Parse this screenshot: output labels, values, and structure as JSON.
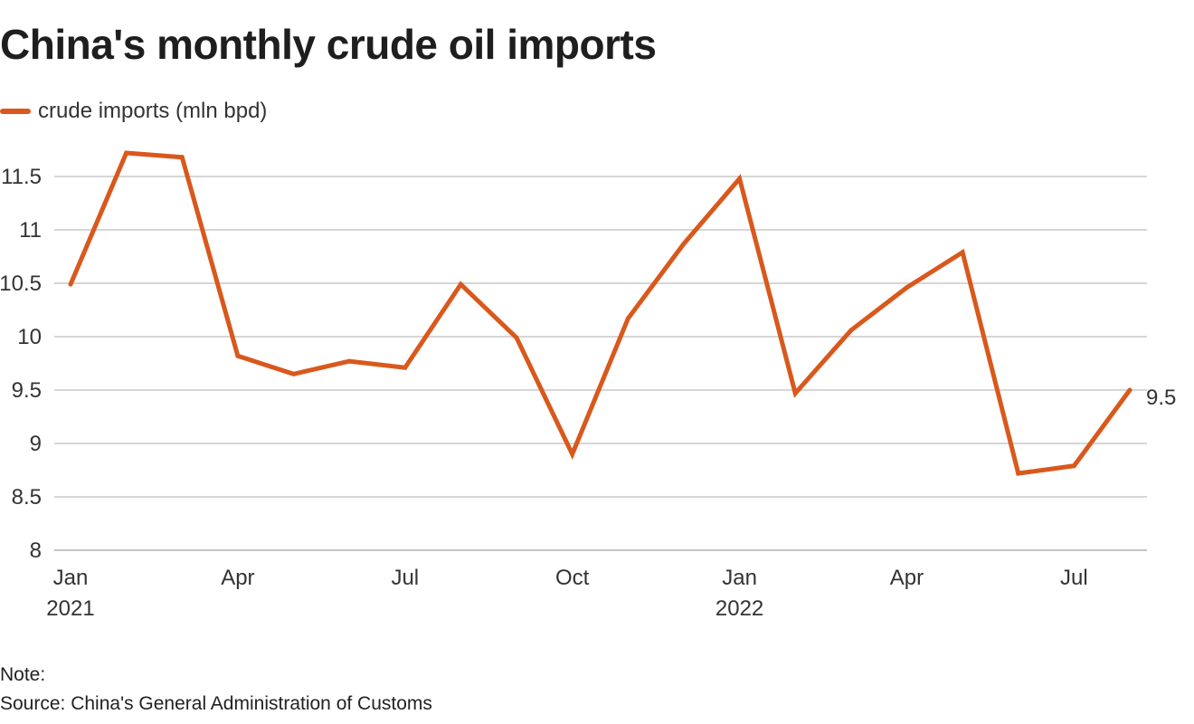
{
  "title": "China's monthly crude oil imports",
  "note": "Note:",
  "source": "Source: China's General Administration of Customs",
  "colors": {
    "series": "#d9581c",
    "grid": "#c8c8c8",
    "text": "#333333"
  },
  "chart_data": {
    "type": "line",
    "title": "China's monthly crude oil imports",
    "xlabel": "",
    "ylabel": "",
    "ylim": [
      8,
      11.75
    ],
    "yticks": [
      8,
      8.5,
      9,
      9.5,
      10,
      10.5,
      11,
      11.5
    ],
    "ytick_labels": [
      "8",
      "8.5",
      "9",
      "9.5",
      "10",
      "10.5",
      "11",
      "11.5"
    ],
    "grid": "horizontal",
    "legend": "top-left",
    "xtick_labels": [
      {
        "month": "Jan",
        "year": "2021",
        "index": 0
      },
      {
        "month": "Apr",
        "year": "",
        "index": 3
      },
      {
        "month": "Jul",
        "year": "",
        "index": 6
      },
      {
        "month": "Oct",
        "year": "",
        "index": 9
      },
      {
        "month": "Jan",
        "year": "2022",
        "index": 12
      },
      {
        "month": "Apr",
        "year": "",
        "index": 15
      },
      {
        "month": "Jul",
        "year": "",
        "index": 18
      }
    ],
    "x": [
      "2021-01",
      "2021-02",
      "2021-03",
      "2021-04",
      "2021-05",
      "2021-06",
      "2021-07",
      "2021-08",
      "2021-09",
      "2021-10",
      "2021-11",
      "2021-12",
      "2022-01",
      "2022-02",
      "2022-03",
      "2022-04",
      "2022-05",
      "2022-06",
      "2022-07",
      "2022-08"
    ],
    "series": [
      {
        "name": "crude imports (mln bpd)",
        "values": [
          10.49,
          11.72,
          11.68,
          9.82,
          9.65,
          9.77,
          9.71,
          10.49,
          9.99,
          8.9,
          10.17,
          10.87,
          11.48,
          9.47,
          10.06,
          10.46,
          10.79,
          8.72,
          8.79,
          9.5
        ]
      }
    ],
    "end_label": "9.5"
  }
}
